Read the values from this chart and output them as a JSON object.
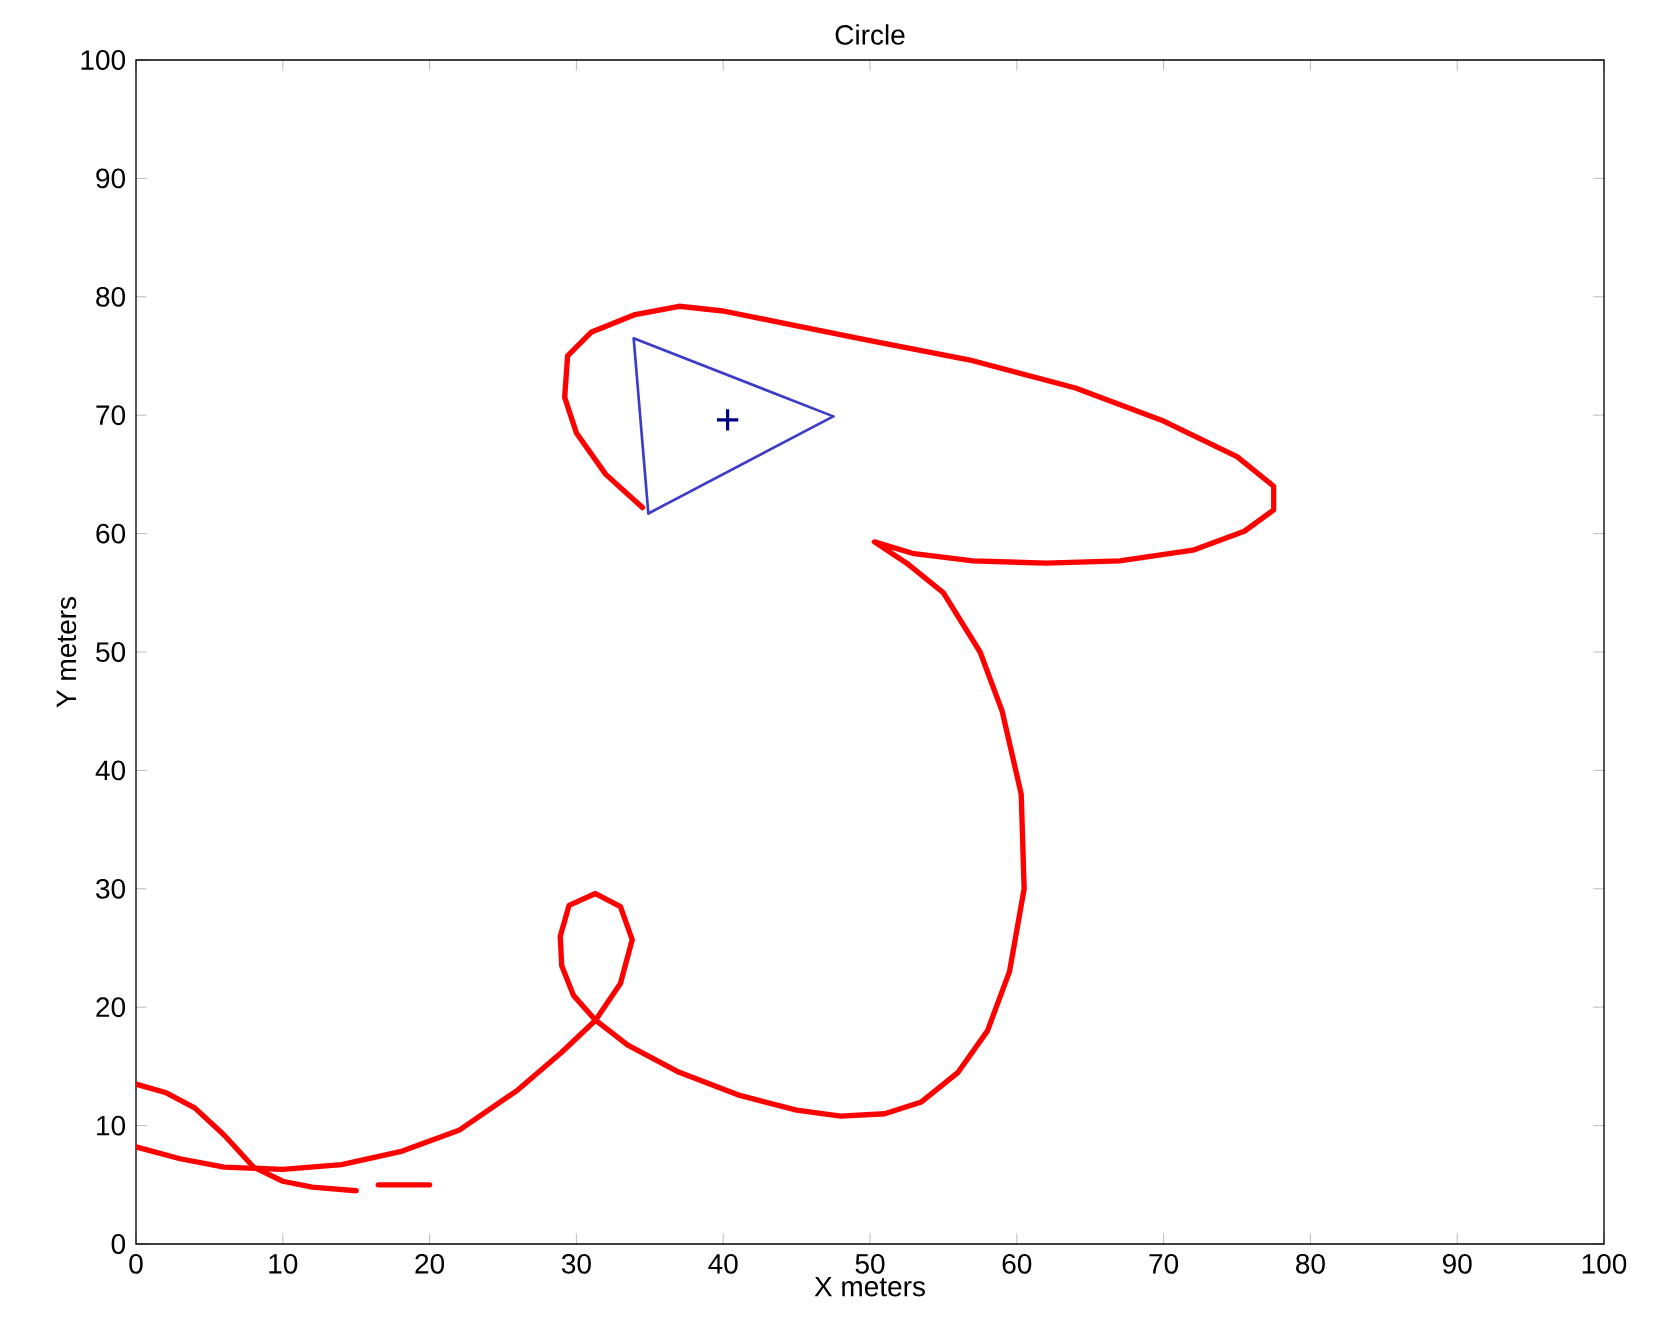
{
  "chart_data": {
    "type": "line",
    "title": "Circle",
    "xlabel": "X meters",
    "ylabel": "Y meters",
    "xlim": [
      0,
      100
    ],
    "ylim": [
      0,
      100
    ],
    "xticks": [
      0,
      10,
      20,
      30,
      40,
      50,
      60,
      70,
      80,
      90,
      100
    ],
    "yticks": [
      0,
      10,
      20,
      30,
      40,
      50,
      60,
      70,
      80,
      90,
      100
    ],
    "grid": false,
    "marker": "none",
    "line_style": "solid",
    "series": [
      {
        "color": "#ff0000",
        "x": [
          0,
          3,
          6,
          10,
          14,
          18,
          22,
          26,
          29,
          31.3,
          33,
          33.8,
          33,
          31.3,
          29.5,
          28.9,
          29,
          29.8,
          31.3,
          33.5,
          37,
          41,
          45,
          48,
          51,
          53.5,
          56,
          58,
          59.5,
          60.5,
          60.3,
          59,
          57.5,
          55,
          52.5,
          50.3,
          53,
          57,
          62,
          67,
          72,
          75.5,
          77.5,
          77.5,
          75,
          70,
          64,
          57,
          50,
          44,
          40,
          37,
          34,
          31,
          29.4,
          29.2,
          30,
          32,
          34.5
        ],
        "values": [
          8.2,
          7.2,
          6.5,
          6.3,
          6.7,
          7.8,
          9.6,
          13,
          16.2,
          18.9,
          22,
          25.7,
          28.5,
          29.6,
          28.6,
          26,
          23.5,
          21,
          18.9,
          16.8,
          14.5,
          12.6,
          11.3,
          10.8,
          11,
          12,
          14.5,
          18,
          23,
          30,
          38,
          45,
          50,
          55,
          57.5,
          59.3,
          58.3,
          57.7,
          57.5,
          57.7,
          58.6,
          60.2,
          62,
          64,
          66.5,
          69.5,
          72.3,
          74.6,
          76.3,
          77.8,
          78.8,
          79.2,
          78.5,
          77,
          75,
          71.5,
          68.5,
          65,
          62.2
        ]
      },
      {
        "color": "#ff0000",
        "x": [
          0,
          2,
          4,
          6,
          8,
          10,
          12,
          15,
          15.8,
          16.5,
          20
        ],
        "values": [
          13.5,
          12.8,
          11.5,
          9.2,
          6.5,
          5.3,
          4.8,
          4.5,
          null,
          5,
          5
        ]
      },
      {
        "color": "#3c3cc8",
        "x": [
          34.9,
          33.9,
          47.5
        ],
        "values": [
          61.7,
          76.5,
          69.9
        ]
      },
      {
        "color": "#3c3cc8",
        "x": [
          47.5,
          34.9
        ],
        "values": [
          69.9,
          61.7
        ]
      },
      {
        "type": "scatter",
        "marker": "cross",
        "color": "#000080",
        "x": [
          40.3
        ],
        "values": [
          69.6
        ]
      }
    ]
  }
}
